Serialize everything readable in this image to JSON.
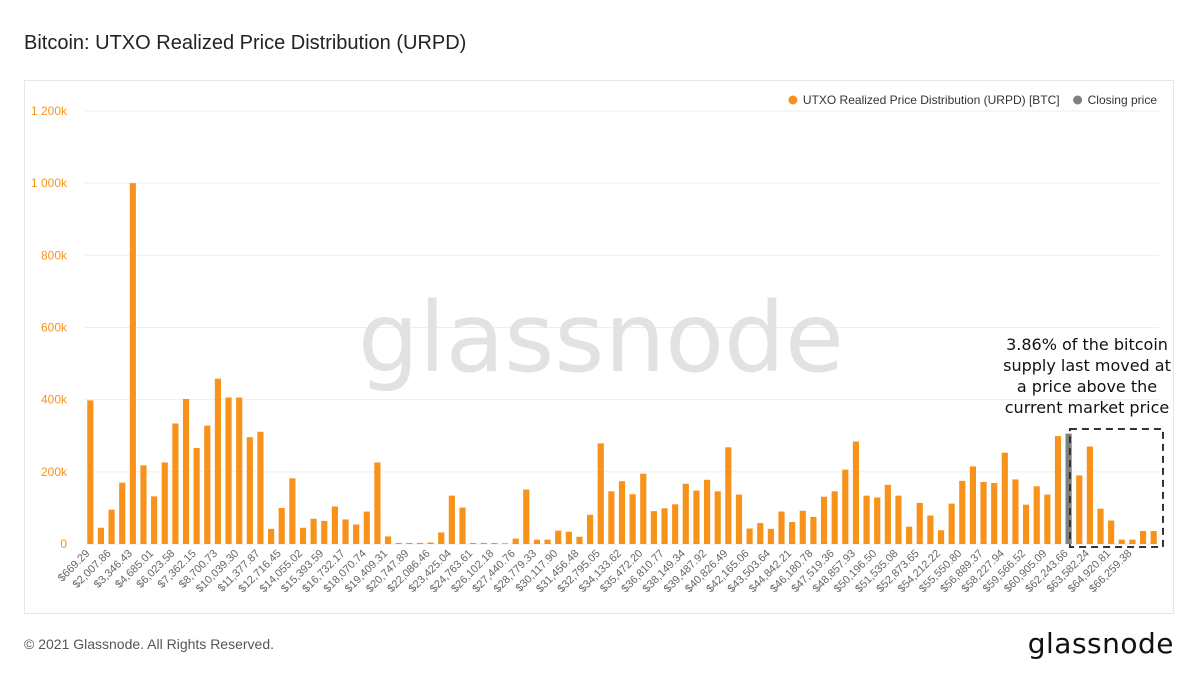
{
  "page": {
    "title": "Bitcoin: UTXO Realized Price Distribution (URPD)",
    "copyright": "© 2021 Glassnode. All Rights Reserved.",
    "logo_text": "glassnode",
    "watermark_text": "glassnode"
  },
  "colors": {
    "bar": "#f7931a",
    "closing": "#7f7f7f",
    "grid": "#eeeeee",
    "annotation_box": "#333333"
  },
  "chart_data": {
    "type": "bar",
    "title": "Bitcoin: UTXO Realized Price Distribution (URPD)",
    "xlabel": "",
    "ylabel": "",
    "ylim": [
      0,
      1200000
    ],
    "grid": true,
    "legend_position": "top-right",
    "y_ticks": [
      {
        "value": 0,
        "label": "0"
      },
      {
        "value": 200000,
        "label": "200k"
      },
      {
        "value": 400000,
        "label": "400k"
      },
      {
        "value": 600000,
        "label": "600k"
      },
      {
        "value": 800000,
        "label": "800k"
      },
      {
        "value": 1000000,
        "label": "1 000k"
      },
      {
        "value": 1200000,
        "label": "1 200k"
      }
    ],
    "x_tick_labels": [
      "$669.29",
      "$2,007.86",
      "$3,346.43",
      "$4,685.01",
      "$6,023.58",
      "$7,362.15",
      "$8,700.73",
      "$10,039.30",
      "$11,377.87",
      "$12,716.45",
      "$14,055.02",
      "$15,393.59",
      "$16,732.17",
      "$18,070.74",
      "$19,409.31",
      "$20,747.89",
      "$22,086.46",
      "$23,425.04",
      "$24,763.61",
      "$26,102.18",
      "$27,440.76",
      "$28,779.33",
      "$30,117.90",
      "$31,456.48",
      "$32,795.05",
      "$34,133.62",
      "$35,472.20",
      "$36,810.77",
      "$38,149.34",
      "$39,487.92",
      "$40,826.49",
      "$42,165.06",
      "$43,503.64",
      "$44,842.21",
      "$46,180.78",
      "$47,519.36",
      "$48,857.93",
      "$50,196.50",
      "$51,535.08",
      "$52,873.65",
      "$54,212.22",
      "$55,550.80",
      "$56,889.37",
      "$58,227.94",
      "$59,566.52",
      "$60,905.09",
      "$62,243.66",
      "$63,582.24",
      "$64,920.81",
      "$66,259.38"
    ],
    "legend": [
      {
        "name": "UTXO Realized Price Distribution (URPD) [BTC]",
        "color": "#f7931a"
      },
      {
        "name": "Closing price",
        "color": "#7f7f7f"
      }
    ],
    "values": [
      398000,
      45000,
      95000,
      170000,
      1000000,
      218000,
      132000,
      226000,
      334000,
      402000,
      266000,
      328000,
      458000,
      406000,
      406000,
      296000,
      311000,
      42000,
      100000,
      182000,
      45000,
      70000,
      64000,
      104000,
      68000,
      54000,
      90000,
      226000,
      21000,
      3000,
      3000,
      3000,
      4000,
      32000,
      134000,
      101000,
      3000,
      3000,
      3000,
      2000,
      15000,
      151000,
      12000,
      12000,
      37000,
      34000,
      20000,
      81000,
      279000,
      146000,
      174000,
      138000,
      195000,
      91000,
      99000,
      110000,
      167000,
      148000,
      178000,
      146000,
      268000,
      137000,
      43000,
      58000,
      42000,
      90000,
      61000,
      92000,
      75000,
      131000,
      146000,
      206000,
      284000,
      134000,
      129000,
      164000,
      134000,
      48000,
      114000,
      79000,
      38000,
      112000,
      175000,
      215000,
      172000,
      169000,
      253000,
      179000,
      109000,
      160000,
      137000,
      299000,
      306000,
      190000,
      270000,
      98000,
      65000,
      12000,
      12000,
      36000,
      36000
    ],
    "closing_price_bar_index": 92,
    "annotation": {
      "lines": [
        "3.86% of the bitcoin",
        "supply last moved at",
        "a price above the",
        "current market price"
      ]
    }
  }
}
